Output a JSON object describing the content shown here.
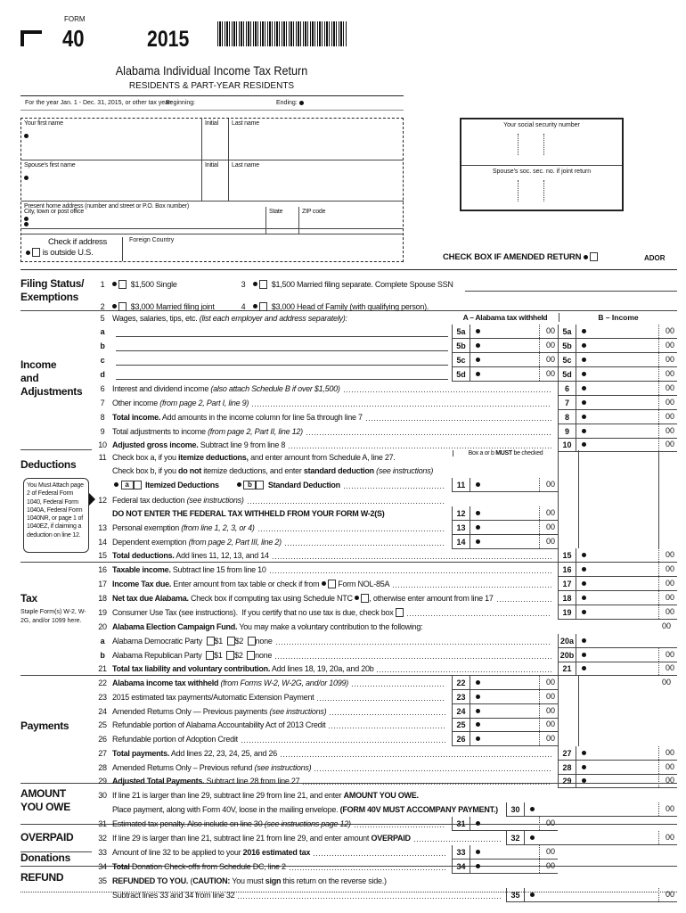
{
  "header": {
    "form_label": "FORM",
    "form_number": "40",
    "year": "2015",
    "title": "Alabama Individual Income Tax Return",
    "subtitle": "RESIDENTS & PART-YEAR RESIDENTS",
    "tax_year_text": "For the year Jan. 1 - Dec. 31, 2015, or other tax year:",
    "beginning": "Beginning:",
    "ending": "Ending:"
  },
  "name_fields": {
    "first_name": "Your first name",
    "initial": "Initial",
    "last_name": "Last name",
    "spouse_first": "Spouse's first name",
    "spouse_initial": "Initial",
    "spouse_last": "Last name",
    "address": "Present home address (number and street or P.O. Box number)",
    "city": "City, town or post office",
    "state": "State",
    "zip": "ZIP code",
    "outside_us_1": "Check if address",
    "outside_us_2": "is outside U.S.",
    "foreign_country": "Foreign Country"
  },
  "ssn": {
    "your": "Your social security number",
    "spouse": "Spouse's soc. sec. no. if joint return"
  },
  "amended": {
    "label": "CHECK BOX IF AMENDED RETURN",
    "ador": "ADOR"
  },
  "cents": "00",
  "sections": {
    "filing_1": "Filing Status/",
    "filing_2": "Exemptions",
    "income_1": "Income",
    "income_2": "and",
    "income_3": "Adjustments",
    "deductions": "Deductions",
    "deduction_note": "You Must Attach page 2 of Federal Form 1040, Federal Form 1040A, Federal Form 1040NR, or page 1 of 1040EZ, if claiming a deduction on line 12.",
    "tax": "Tax",
    "tax_note": "Staple Form(s) W-2, W-2G, and/or 1099 here.",
    "payments": "Payments",
    "owe_1": "AMOUNT",
    "owe_2": "YOU OWE",
    "overpaid": "OVERPAID",
    "donations": "Donations",
    "refund": "REFUND"
  },
  "filing_status": [
    {
      "num": "1",
      "label": "$1,500 Single"
    },
    {
      "num": "2",
      "label": "$3,000 Married filing joint"
    },
    {
      "num": "3",
      "label": "$1,500 Married filing separate. Complete Spouse SSN"
    },
    {
      "num": "4",
      "label": "$3,000 Head of Family (with qualifying person)."
    }
  ],
  "columns": {
    "a": "A – Alabama tax withheld",
    "b": "B – Income",
    "box_note_1": "Box a or b ",
    "box_note_2": "MUST",
    "box_note_3": " be checked"
  },
  "deduction_choice": {
    "a": "a",
    "a_label": "Itemized Deductions",
    "b": "b",
    "b_label": "Standard Deduction"
  },
  "lines": [
    {
      "num": "5",
      "type": "T",
      "parts": [
        {
          "t": "Wages, salaries, tips, etc. "
        },
        {
          "t": "(list each employer and address separately):",
          "s": "i"
        }
      ]
    },
    {
      "num": "a",
      "type": "U",
      "a": "5a",
      "b": "5a"
    },
    {
      "num": "b",
      "type": "U",
      "a": "5b",
      "b": "5b"
    },
    {
      "num": "c",
      "type": "U",
      "a": "5c",
      "b": "5c"
    },
    {
      "num": "d",
      "type": "U",
      "a": "5d",
      "b": "5d"
    },
    {
      "num": "6",
      "type": "B",
      "b": "6",
      "parts": [
        {
          "t": "Interest and dividend income "
        },
        {
          "t": "(also attach Schedule B if over $1,500)",
          "s": "i"
        }
      ]
    },
    {
      "num": "7",
      "type": "B",
      "b": "7",
      "parts": [
        {
          "t": "Other income "
        },
        {
          "t": "(from page 2, Part I, line 9)",
          "s": "i"
        }
      ]
    },
    {
      "num": "8",
      "type": "B",
      "b": "8",
      "parts": [
        {
          "t": "Total income.",
          "s": "b"
        },
        {
          "t": " Add amounts in the income column for line 5a through line 7"
        }
      ]
    },
    {
      "num": "9",
      "type": "B",
      "b": "9",
      "parts": [
        {
          "t": "Total adjustments to income "
        },
        {
          "t": "(from page 2, Part II, line 12)",
          "s": "i"
        }
      ]
    },
    {
      "num": "10",
      "type": "B",
      "b": "10",
      "parts": [
        {
          "t": "Adjusted gross income.",
          "s": "b"
        },
        {
          "t": " Subtract line 9 from line 8"
        }
      ]
    },
    {
      "num": "11",
      "type": "T",
      "parts": [
        {
          "t": "Check box a, if you "
        },
        {
          "t": "itemize deductions,",
          "s": "b"
        },
        {
          "t": " and enter amount from Schedule A, line 27."
        }
      ]
    },
    {
      "num": "",
      "type": "T",
      "parts": [
        {
          "t": "Check box b, if you "
        },
        {
          "t": "do not",
          "s": "b"
        },
        {
          "t": " itemize deductions, and enter "
        },
        {
          "t": "standard deduction",
          "s": "b"
        },
        {
          "t": " (see instructions)",
          "s": "i"
        }
      ]
    },
    {
      "num": "",
      "type": "AB",
      "a": "11"
    },
    {
      "num": "12",
      "type": "L",
      "parts": [
        {
          "t": "Federal tax deduction "
        },
        {
          "t": "(see instructions)",
          "s": "i"
        }
      ]
    },
    {
      "num": "",
      "type": "A",
      "a": "12",
      "nolead": true,
      "parts": [
        {
          "t": "DO NOT ENTER THE FEDERAL TAX WITHHELD FROM YOUR FORM W-2(S)",
          "s": "b"
        }
      ]
    },
    {
      "num": "13",
      "type": "A",
      "a": "13",
      "parts": [
        {
          "t": "Personal exemption "
        },
        {
          "t": "(from line 1, 2, 3, or 4)",
          "s": "i"
        }
      ]
    },
    {
      "num": "14",
      "type": "A",
      "a": "14",
      "parts": [
        {
          "t": "Dependent exemption "
        },
        {
          "t": "(from page 2, Part III, line 2)",
          "s": "i"
        }
      ]
    },
    {
      "num": "15",
      "type": "B",
      "b": "15",
      "parts": [
        {
          "t": "Total deductions.",
          "s": "b"
        },
        {
          "t": " Add lines 11, 12, 13, and 14"
        }
      ]
    },
    {
      "num": "16",
      "type": "B",
      "b": "16",
      "parts": [
        {
          "t": "Taxable income.",
          "s": "b"
        },
        {
          "t": " Subtract line 15 from line 10"
        }
      ]
    },
    {
      "num": "17",
      "type": "B",
      "b": "17",
      "parts": [
        {
          "t": "Income Tax due.",
          "s": "b"
        },
        {
          "t": " Enter amount from tax table or check if from "
        },
        {
          "cb": true
        },
        {
          "t": " Form NOL-85A"
        }
      ]
    },
    {
      "num": "18",
      "type": "B",
      "b": "18",
      "parts": [
        {
          "t": "Net tax due Alabama.",
          "s": "b"
        },
        {
          "t": " Check box if computing tax using Schedule NTC "
        },
        {
          "cb": true
        },
        {
          "t": ", otherwise enter amount from line 17"
        }
      ]
    },
    {
      "num": "19",
      "type": "B",
      "b": "19",
      "parts": [
        {
          "t": "Consumer Use Tax (see instructions).  If you certify that no use tax is due, check box "
        },
        {
          "cb": true,
          "nodot": true
        }
      ]
    },
    {
      "num": "20",
      "type": "C",
      "nolead": true,
      "parts": [
        {
          "t": "Alabama Election Campaign Fund.",
          "s": "b"
        },
        {
          "t": " You may make a voluntary contribution to the following:"
        }
      ]
    },
    {
      "num": "a",
      "type": "B",
      "b": "20a",
      "nocents": true,
      "parts": [
        {
          "t": "Alabama Democratic Party  "
        },
        {
          "cb": true,
          "nodot": true
        },
        {
          "t": "$1  "
        },
        {
          "cb": true,
          "nodot": true
        },
        {
          "t": "$2  "
        },
        {
          "cb": true,
          "nodot": true
        },
        {
          "t": "none"
        }
      ]
    },
    {
      "num": "b",
      "type": "B",
      "b": "20b",
      "parts": [
        {
          "t": "Alabama Republican Party  "
        },
        {
          "cb": true,
          "nodot": true
        },
        {
          "t": "$1  "
        },
        {
          "cb": true,
          "nodot": true
        },
        {
          "t": "$2  "
        },
        {
          "cb": true,
          "nodot": true
        },
        {
          "t": "none"
        }
      ]
    },
    {
      "num": "21",
      "type": "B",
      "b": "21",
      "parts": [
        {
          "t": "Total tax liability and voluntary contribution.",
          "s": "b"
        },
        {
          "t": " Add lines 18, 19, 20a, and 20b"
        }
      ]
    },
    {
      "num": "22",
      "type": "A",
      "a": "22",
      "bcents": true,
      "parts": [
        {
          "t": "Alabama income tax withheld",
          "s": "b"
        },
        {
          "t": " (from Forms W-2, W-2G, and/or 1099)",
          "s": "i"
        }
      ]
    },
    {
      "num": "23",
      "type": "A",
      "a": "23",
      "parts": [
        {
          "t": "2015 estimated tax payments/Automatic Extension Payment"
        }
      ]
    },
    {
      "num": "24",
      "type": "A",
      "a": "24",
      "parts": [
        {
          "t": "Amended Returns Only — Previous payments "
        },
        {
          "t": "(see instructions)",
          "s": "i"
        }
      ]
    },
    {
      "num": "25",
      "type": "A",
      "a": "25",
      "parts": [
        {
          "t": "Refundable portion of Alabama Accountability Act of 2013 Credit"
        }
      ]
    },
    {
      "num": "26",
      "type": "A",
      "a": "26",
      "parts": [
        {
          "t": "Refundable portion of Adoption Credit"
        }
      ]
    },
    {
      "num": "27",
      "type": "B",
      "b": "27",
      "parts": [
        {
          "t": "Total payments.",
          "s": "b"
        },
        {
          "t": " Add lines 22, 23, 24, 25, and 26"
        }
      ]
    },
    {
      "num": "28",
      "type": "B",
      "b": "28",
      "parts": [
        {
          "t": "Amended Returns Only – Previous refund "
        },
        {
          "t": "(see instructions)",
          "s": "i"
        }
      ]
    },
    {
      "num": "29",
      "type": "B",
      "b": "29",
      "parts": [
        {
          "t": "Adjusted Total Payments.",
          "s": "b"
        },
        {
          "t": " Subtract line 28 from line 27"
        }
      ]
    },
    {
      "num": "30",
      "type": "T",
      "parts": [
        {
          "t": "If line 21 is larger than line 29, subtract line 29 from line 21, and enter "
        },
        {
          "t": "AMOUNT YOU OWE.",
          "s": "b"
        }
      ]
    },
    {
      "num": "",
      "type": "W",
      "w": "30",
      "nolead": true,
      "parts": [
        {
          "t": "Place payment, along with Form 40V, loose in the mailing envelope. "
        },
        {
          "t": "(FORM 40V MUST ACCOMPANY PAYMENT.)",
          "s": "b"
        }
      ]
    },
    {
      "num": "31",
      "type": "A",
      "a": "31",
      "parts": [
        {
          "t": "Estimated tax penalty. Also include on line 30 "
        },
        {
          "t": "(see instructions page 12)",
          "s": "i"
        }
      ]
    },
    {
      "num": "32",
      "type": "W",
      "w": "32",
      "parts": [
        {
          "t": "If line 29 is larger than line 21, subtract line 21 from line 29, and enter amount "
        },
        {
          "t": "OVERPAID",
          "s": "b"
        }
      ]
    },
    {
      "num": "33",
      "type": "A",
      "a": "33",
      "parts": [
        {
          "t": "Amount of line 32 to be applied to your "
        },
        {
          "t": "2016 estimated tax",
          "s": "b"
        }
      ]
    },
    {
      "num": "34",
      "type": "A",
      "a": "34",
      "parts": [
        {
          "t": "Total",
          "s": "b"
        },
        {
          "t": " Donation Check-offs from Schedule DC, line 2"
        }
      ]
    },
    {
      "num": "35",
      "type": "T",
      "parts": [
        {
          "t": "REFUNDED TO YOU.",
          "s": "b"
        },
        {
          "t": " ("
        },
        {
          "t": "CAUTION:",
          "s": "b"
        },
        {
          "t": " You must "
        },
        {
          "t": "sign",
          "s": "b"
        },
        {
          "t": " this return on the reverse side.)"
        }
      ]
    },
    {
      "num": "",
      "type": "W",
      "w": "35",
      "parts": [
        {
          "t": "Subtract lines 33 and 34 from line 32"
        }
      ]
    }
  ]
}
